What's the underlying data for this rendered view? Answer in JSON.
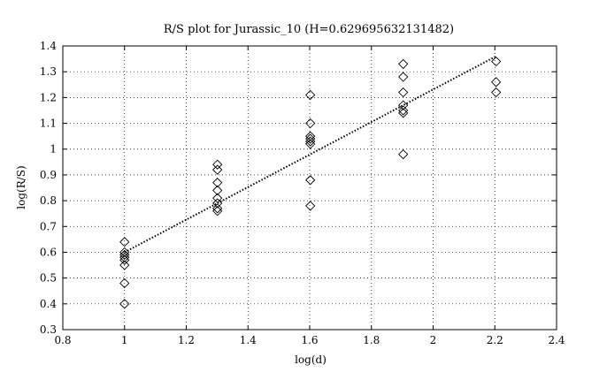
{
  "chart_data": {
    "type": "scatter",
    "title": "R/S plot for Jurassic_10 (H=0.629695632131482)",
    "xlabel": "log(d)",
    "ylabel": "log(R/S)",
    "xlim": [
      0.8,
      2.4
    ],
    "ylim": [
      0.3,
      1.4
    ],
    "xticks": [
      "0.8",
      "1",
      "1.2",
      "1.4",
      "1.6",
      "1.8",
      "2",
      "2.2",
      "2.4"
    ],
    "yticks": [
      "0.3",
      "0.4",
      "0.5",
      "0.6",
      "0.7",
      "0.8",
      "0.9",
      "1",
      "1.1",
      "1.2",
      "1.3",
      "1.4"
    ],
    "grid": true,
    "marker": "diamond",
    "colors": {
      "marker": "#000000",
      "fit": "#000000",
      "grid": "#000000",
      "axes": "#000000"
    },
    "series": [
      {
        "values": [
          {
            "x": 1.0,
            "y": 0.64
          },
          {
            "x": 1.0,
            "y": 0.6
          },
          {
            "x": 1.0,
            "y": 0.59
          },
          {
            "x": 1.0,
            "y": 0.58
          },
          {
            "x": 1.0,
            "y": 0.57
          },
          {
            "x": 1.0,
            "y": 0.55
          },
          {
            "x": 1.0,
            "y": 0.48
          },
          {
            "x": 1.0,
            "y": 0.4
          },
          {
            "x": 1.301,
            "y": 0.94
          },
          {
            "x": 1.301,
            "y": 0.92
          },
          {
            "x": 1.301,
            "y": 0.87
          },
          {
            "x": 1.301,
            "y": 0.84
          },
          {
            "x": 1.301,
            "y": 0.81
          },
          {
            "x": 1.301,
            "y": 0.79
          },
          {
            "x": 1.301,
            "y": 0.77
          },
          {
            "x": 1.301,
            "y": 0.76
          },
          {
            "x": 1.602,
            "y": 1.21
          },
          {
            "x": 1.602,
            "y": 1.1
          },
          {
            "x": 1.602,
            "y": 1.05
          },
          {
            "x": 1.602,
            "y": 1.04
          },
          {
            "x": 1.602,
            "y": 1.03
          },
          {
            "x": 1.602,
            "y": 1.02
          },
          {
            "x": 1.602,
            "y": 0.88
          },
          {
            "x": 1.602,
            "y": 0.78
          },
          {
            "x": 1.903,
            "y": 1.33
          },
          {
            "x": 1.903,
            "y": 1.28
          },
          {
            "x": 1.903,
            "y": 1.22
          },
          {
            "x": 1.903,
            "y": 1.17
          },
          {
            "x": 1.903,
            "y": 1.15
          },
          {
            "x": 1.903,
            "y": 1.14
          },
          {
            "x": 1.903,
            "y": 0.98
          },
          {
            "x": 2.204,
            "y": 1.34
          },
          {
            "x": 2.204,
            "y": 1.26
          },
          {
            "x": 2.204,
            "y": 1.22
          }
        ]
      }
    ],
    "fit_line": {
      "style": "dotted",
      "points": [
        {
          "x": 1.0,
          "y": 0.6
        },
        {
          "x": 2.204,
          "y": 1.36
        }
      ]
    }
  }
}
